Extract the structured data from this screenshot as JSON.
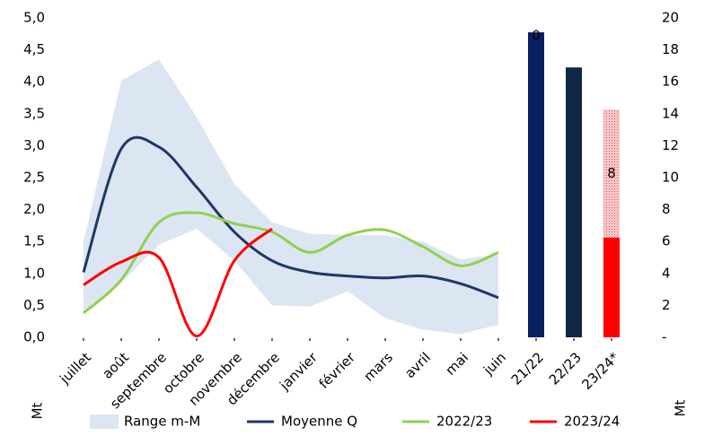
{
  "chart_data": {
    "type": "line",
    "categories": [
      "juillet",
      "août",
      "septembre",
      "octobre",
      "novembre",
      "décembre",
      "janvier",
      "février",
      "mars",
      "avril",
      "mai",
      "juin",
      "21/22",
      "22/23",
      "23/24*"
    ],
    "ylim": [
      0,
      5
    ],
    "yticks": [
      {
        "value": 0,
        "label": "0,0"
      },
      {
        "value": 0.5,
        "label": "0,5"
      },
      {
        "value": 1,
        "label": "1,0"
      },
      {
        "value": 1.5,
        "label": "1,5"
      },
      {
        "value": 2,
        "label": "2,0"
      },
      {
        "value": 2.5,
        "label": "2,5"
      },
      {
        "value": 3,
        "label": "3,0"
      },
      {
        "value": 3.5,
        "label": "3,5"
      },
      {
        "value": 4,
        "label": "4,0"
      },
      {
        "value": 4.5,
        "label": "4,5"
      },
      {
        "value": 5,
        "label": "5,0"
      }
    ],
    "y2lim": [
      0,
      20
    ],
    "y2ticks": [
      {
        "value": 0,
        "label": "-"
      },
      2,
      4,
      6,
      8,
      10,
      12,
      14,
      16,
      18,
      20
    ],
    "ylabel": "Mt",
    "y2label": "Mt",
    "series": [
      {
        "name": "Range m-M",
        "type": "range",
        "color": "#dce6f2",
        "low": [
          0.4,
          0.85,
          1.45,
          1.7,
          1.2,
          0.5,
          0.48,
          0.72,
          0.3,
          0.12,
          0.05,
          0.2,
          null,
          null,
          null
        ],
        "high": [
          1.5,
          4.02,
          4.35,
          3.45,
          2.4,
          1.8,
          1.62,
          1.6,
          1.6,
          1.5,
          1.22,
          1.3,
          null,
          null,
          null
        ]
      },
      {
        "name": "Moyenne Q",
        "type": "line",
        "color": "#1f3864",
        "values": [
          1.02,
          2.95,
          2.98,
          2.35,
          1.65,
          1.2,
          1.02,
          0.96,
          0.93,
          0.96,
          0.84,
          0.62,
          null,
          null,
          null
        ]
      },
      {
        "name": "2022/23",
        "type": "line",
        "color": "#92d050",
        "values": [
          0.38,
          0.9,
          1.8,
          1.95,
          1.78,
          1.65,
          1.33,
          1.6,
          1.68,
          1.42,
          1.12,
          1.33,
          null,
          null,
          null
        ]
      },
      {
        "name": "2023/24",
        "type": "line",
        "color": "#ff0000",
        "values": [
          0.82,
          1.18,
          1.25,
          0.02,
          1.2,
          1.7,
          null,
          null,
          null,
          null,
          null,
          null,
          null,
          null,
          null
        ]
      },
      {
        "type": "bar",
        "axis": "y2",
        "colors": [
          null,
          null,
          null,
          null,
          null,
          null,
          null,
          null,
          null,
          null,
          null,
          null,
          "#0b2060",
          "#122748",
          "#ff0000"
        ],
        "values": [
          null,
          null,
          null,
          null,
          null,
          null,
          null,
          null,
          null,
          null,
          null,
          null,
          19.1,
          16.9,
          6.25
        ]
      },
      {
        "type": "bar",
        "axis": "y2",
        "stacked": true,
        "color": "#f4a0a0",
        "values": [
          null,
          null,
          null,
          null,
          null,
          null,
          null,
          null,
          null,
          null,
          null,
          null,
          0,
          null,
          8
        ],
        "value_labels": [
          null,
          null,
          null,
          null,
          null,
          null,
          null,
          null,
          null,
          null,
          null,
          null,
          "0",
          null,
          "8"
        ]
      }
    ],
    "legend": "bottom"
  }
}
